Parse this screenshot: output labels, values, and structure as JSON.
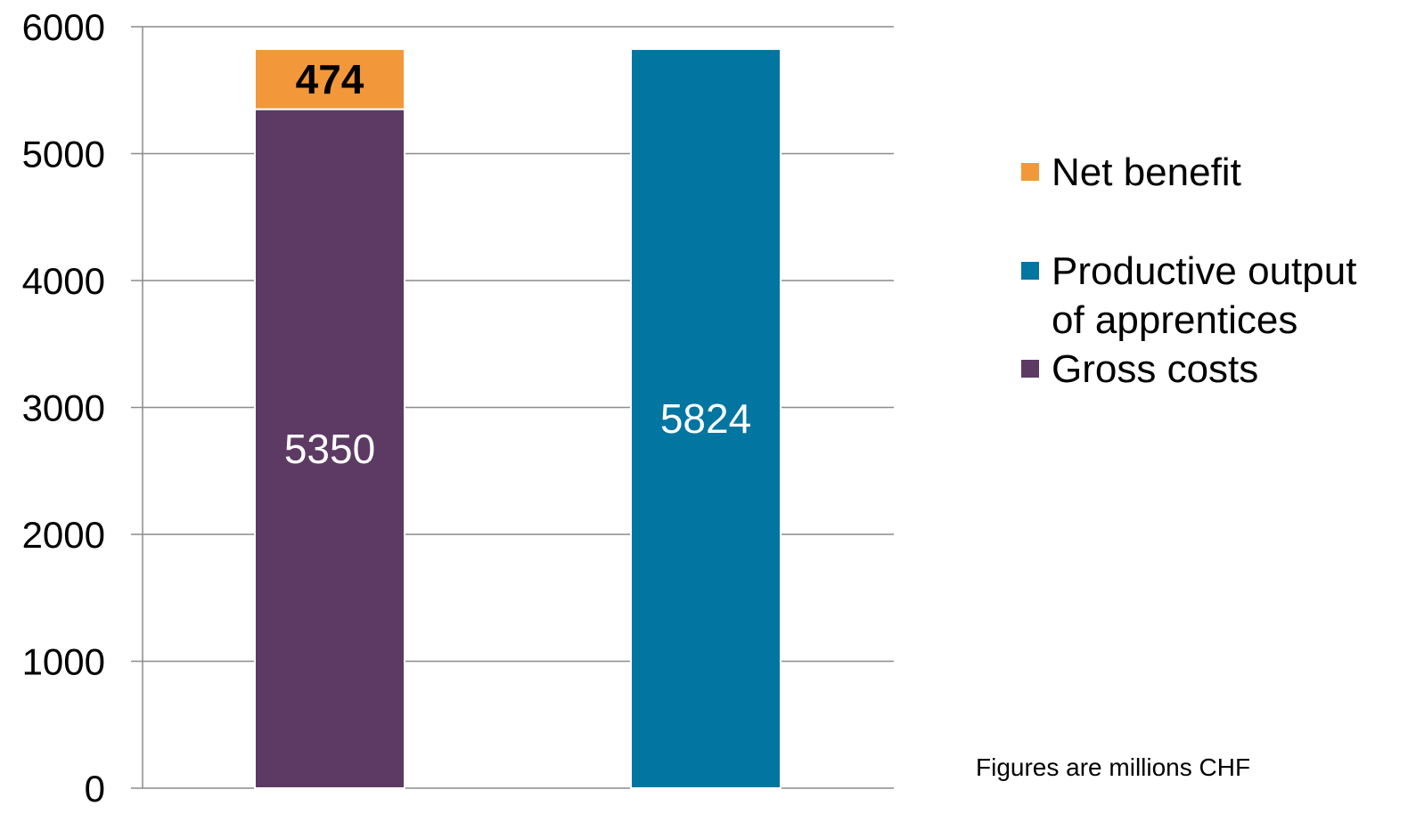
{
  "chart_data": {
    "type": "bar",
    "stacked": true,
    "categories": [
      "",
      ""
    ],
    "series": [
      {
        "name": "Gross costs",
        "color": "#5d3a64",
        "values": [
          5350,
          0
        ]
      },
      {
        "name": "Net benefit",
        "color": "#f2983a",
        "values": [
          474,
          0
        ]
      },
      {
        "name": "Productive output of apprentices",
        "color": "#0275a1",
        "values": [
          0,
          5824
        ]
      }
    ],
    "data_labels": [
      {
        "category_index": 0,
        "series": "Gross costs",
        "text": "5350",
        "color": "#ffffff",
        "bold": false
      },
      {
        "category_index": 0,
        "series": "Net benefit",
        "text": "474",
        "color": "#000000",
        "bold": true
      },
      {
        "category_index": 1,
        "series": "Productive output of apprentices",
        "text": "5824",
        "color": "#ffffff",
        "bold": false
      }
    ],
    "yticks": [
      "0",
      "1000",
      "2000",
      "3000",
      "4000",
      "5000",
      "6000"
    ],
    "ylim": [
      0,
      6000
    ],
    "grid": true,
    "legend_position": "right",
    "title": "",
    "xlabel": "",
    "ylabel": ""
  },
  "legend": {
    "items": [
      {
        "label_line1": "Net benefit",
        "label_line2": "",
        "color": "#f2983a"
      },
      {
        "label_line1": "Productive output",
        "label_line2": "of apprentices",
        "color": "#0275a1"
      },
      {
        "label_line1": "Gross costs",
        "label_line2": "",
        "color": "#5d3a64"
      }
    ]
  },
  "note": "Figures are millions CHF"
}
